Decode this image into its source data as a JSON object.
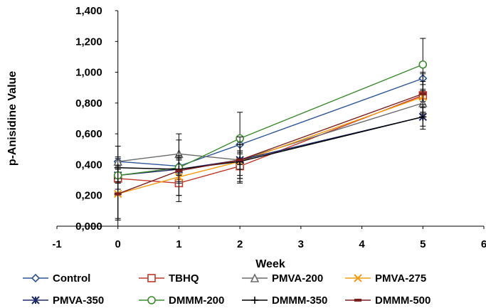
{
  "chart_data": {
    "type": "line",
    "title": "",
    "xlabel": "Week",
    "ylabel": "p-Anisidine Value",
    "xlim": [
      -1,
      6
    ],
    "ylim": [
      0,
      1.4
    ],
    "x_ticks": [
      -1,
      0,
      1,
      2,
      3,
      4,
      5,
      6
    ],
    "x_tick_labels": [
      "-1",
      "0",
      "1",
      "2",
      "3",
      "4",
      "5",
      "6"
    ],
    "y_ticks": [
      0,
      0.2,
      0.4,
      0.6,
      0.8,
      1.0,
      1.2,
      1.4
    ],
    "y_tick_labels": [
      "0,000",
      "0,200",
      "0,400",
      "0,600",
      "0,800",
      "1,000",
      "1,200",
      "1,400"
    ],
    "x": [
      0,
      1,
      2,
      5
    ],
    "grid": false,
    "legend_position": "bottom",
    "series": [
      {
        "name": "Control",
        "color": "#2e5597",
        "marker": "diamond",
        "values": [
          0.42,
          0.39,
          0.53,
          0.96
        ],
        "y_error": [
          0.02,
          0.04,
          0.05,
          0.04
        ]
      },
      {
        "name": "TBHQ",
        "color": "#c0392b",
        "marker": "square",
        "values": [
          0.31,
          0.28,
          0.39,
          0.85
        ],
        "y_error": [
          0.03,
          0.08,
          0.1,
          0.04
        ]
      },
      {
        "name": "PMVA-200",
        "color": "#6b6b6b",
        "marker": "triangle",
        "values": [
          0.42,
          0.47,
          0.43,
          0.8
        ],
        "y_error": [
          0.03,
          0.13,
          0.12,
          0.06
        ]
      },
      {
        "name": "PMVA-275",
        "color": "#f39c12",
        "marker": "x",
        "values": [
          0.21,
          0.32,
          0.42,
          0.84
        ],
        "y_error": [
          0.16,
          0.12,
          0.11,
          0.1
        ]
      },
      {
        "name": "PMVA-350",
        "color": "#1f2a6b",
        "marker": "star",
        "values": [
          0.33,
          0.37,
          0.43,
          0.71
        ],
        "y_error": [
          0.05,
          0.09,
          0.1,
          0.06
        ]
      },
      {
        "name": "DMMM-200",
        "color": "#3c8a2e",
        "marker": "circle",
        "values": [
          0.33,
          0.38,
          0.57,
          1.05
        ],
        "y_error": [
          0.04,
          0.05,
          0.17,
          0.17
        ]
      },
      {
        "name": "DMMM-350",
        "color": "#000000",
        "marker": "plus",
        "values": [
          0.38,
          0.37,
          0.42,
          0.71
        ],
        "y_error": [
          0.14,
          0.08,
          0.05,
          0.08
        ]
      },
      {
        "name": "DMMM-500",
        "color": "#7a1f1f",
        "marker": "dash",
        "values": [
          0.21,
          0.36,
          0.43,
          0.86
        ],
        "y_error": [
          0.17,
          0.2,
          0.15,
          0.13
        ]
      }
    ]
  }
}
